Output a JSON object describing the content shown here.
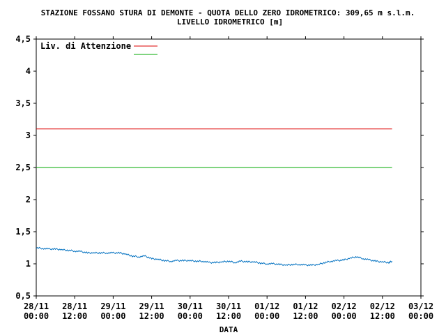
{
  "chart_data": {
    "type": "line",
    "title": "STAZIONE FOSSANO STURA DI DEMONTE - QUOTA DELLO ZERO IDROMETRICO: 309,65 m s.l.m.",
    "subtitle": "LIVELLO IDROMETRICO [m]",
    "xlabel": "DATA",
    "ylabel": "",
    "ylim": [
      0.5,
      4.5
    ],
    "y_ticks": [
      "0,5",
      "1",
      "1,5",
      "2",
      "2,5",
      "3",
      "3,5",
      "4",
      "4,5"
    ],
    "y_tick_values": [
      0.5,
      1,
      1.5,
      2,
      2.5,
      3,
      3.5,
      4,
      4.5
    ],
    "x_ticks": [
      {
        "date": "28/11",
        "time": "00:00",
        "hours": 0
      },
      {
        "date": "28/11",
        "time": "12:00",
        "hours": 12
      },
      {
        "date": "29/11",
        "time": "00:00",
        "hours": 24
      },
      {
        "date": "29/11",
        "time": "12:00",
        "hours": 36
      },
      {
        "date": "30/11",
        "time": "00:00",
        "hours": 48
      },
      {
        "date": "30/11",
        "time": "12:00",
        "hours": 60
      },
      {
        "date": "01/12",
        "time": "00:00",
        "hours": 72
      },
      {
        "date": "01/12",
        "time": "12:00",
        "hours": 84
      },
      {
        "date": "02/12",
        "time": "00:00",
        "hours": 96
      },
      {
        "date": "02/12",
        "time": "12:00",
        "hours": 108
      },
      {
        "date": "03/12",
        "time": "00:00",
        "hours": 120
      }
    ],
    "xlim_hours": [
      0,
      120
    ],
    "grid": false,
    "legend_position": "top-left",
    "legend": [
      {
        "label": "Liv. di Attenzione",
        "color": "#dd0000"
      },
      {
        "label": "",
        "color": "#00aa00"
      }
    ],
    "threshold_lines": [
      {
        "value": 3.1,
        "color": "#dd0000",
        "x_start_hours": 0,
        "x_end_hours": 111
      },
      {
        "value": 2.5,
        "color": "#00aa00",
        "x_start_hours": 0,
        "x_end_hours": 111
      }
    ],
    "series": [
      {
        "color": "#0070c0",
        "x_hours": [
          0,
          2,
          4,
          6,
          8,
          10,
          12,
          14,
          16,
          18,
          20,
          22,
          24,
          26,
          28,
          30,
          32,
          34,
          36,
          38,
          40,
          42,
          44,
          46,
          48,
          50,
          52,
          54,
          56,
          58,
          60,
          62,
          64,
          66,
          68,
          70,
          72,
          74,
          76,
          78,
          80,
          82,
          84,
          86,
          88,
          90,
          92,
          94,
          96,
          98,
          100,
          102,
          104,
          106,
          108,
          110,
          111
        ],
        "values": [
          1.25,
          1.24,
          1.23,
          1.23,
          1.22,
          1.21,
          1.2,
          1.19,
          1.17,
          1.17,
          1.17,
          1.17,
          1.17,
          1.17,
          1.15,
          1.12,
          1.11,
          1.12,
          1.08,
          1.07,
          1.05,
          1.04,
          1.05,
          1.05,
          1.05,
          1.04,
          1.04,
          1.02,
          1.02,
          1.03,
          1.04,
          1.02,
          1.04,
          1.03,
          1.03,
          1.01,
          1.0,
          1.0,
          0.99,
          0.98,
          0.99,
          0.99,
          0.98,
          0.98,
          0.99,
          1.02,
          1.04,
          1.05,
          1.06,
          1.09,
          1.11,
          1.08,
          1.06,
          1.04,
          1.03,
          1.02,
          1.04
        ]
      }
    ]
  }
}
